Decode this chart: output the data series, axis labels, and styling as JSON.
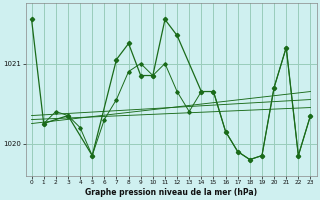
{
  "title": "Graphe pression niveau de la mer (hPa)",
  "bg_color": "#cff0f0",
  "grid_color": "#99ccbb",
  "line_color": "#1a6b1a",
  "xlim": [
    -0.5,
    23.5
  ],
  "ylim": [
    1019.6,
    1021.75
  ],
  "yticks": [
    1020,
    1021
  ],
  "xticks": [
    0,
    1,
    2,
    3,
    4,
    5,
    6,
    7,
    8,
    9,
    10,
    11,
    12,
    13,
    14,
    15,
    16,
    17,
    18,
    19,
    20,
    21,
    22,
    23
  ],
  "main_line": {
    "x": [
      0,
      1,
      3,
      5,
      7,
      8,
      9,
      10,
      11,
      12,
      14,
      15,
      16,
      17,
      18,
      19,
      20,
      21,
      22,
      23
    ],
    "y": [
      1021.55,
      1020.25,
      1020.35,
      1019.85,
      1021.05,
      1021.25,
      1020.85,
      1020.85,
      1021.55,
      1021.35,
      1020.65,
      1020.65,
      1020.15,
      1019.9,
      1019.8,
      1019.85,
      1020.7,
      1021.2,
      1019.85,
      1020.35
    ]
  },
  "trend_lines": [
    {
      "x": [
        0,
        23
      ],
      "y": [
        1020.3,
        1020.45
      ]
    },
    {
      "x": [
        0,
        23
      ],
      "y": [
        1020.35,
        1020.55
      ]
    },
    {
      "x": [
        0,
        23
      ],
      "y": [
        1020.25,
        1020.65
      ]
    }
  ],
  "secondary_lines": [
    {
      "x": [
        1,
        2,
        3,
        4,
        5,
        6,
        7,
        8,
        9,
        10,
        11,
        12,
        13,
        14,
        15,
        16,
        17,
        18,
        19,
        20,
        21,
        22,
        23
      ],
      "y": [
        1020.25,
        1020.4,
        1020.35,
        1020.2,
        1019.85,
        1020.3,
        1020.55,
        1020.9,
        1021.0,
        1020.85,
        1021.0,
        1020.65,
        1020.4,
        1020.65,
        1020.65,
        1020.15,
        1019.9,
        1019.8,
        1019.85,
        1020.7,
        1021.2,
        1019.85,
        1020.35
      ]
    }
  ]
}
